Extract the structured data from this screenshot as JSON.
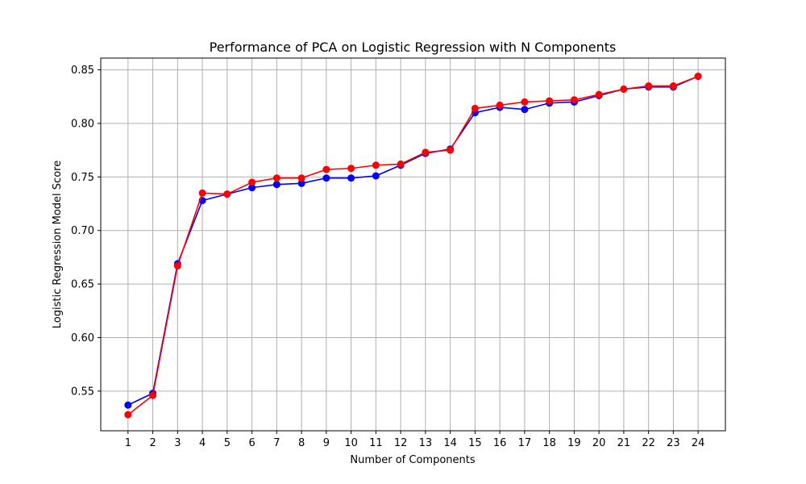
{
  "chart_data": {
    "type": "line",
    "title": "Performance of PCA on Logistic Regression with N Components",
    "xlabel": "Number of Components",
    "ylabel": "Logistic Regression Model Score",
    "x": [
      1,
      2,
      3,
      4,
      5,
      6,
      7,
      8,
      9,
      10,
      11,
      12,
      13,
      14,
      15,
      16,
      17,
      18,
      19,
      20,
      21,
      22,
      23,
      24
    ],
    "x_tick_labels": [
      "1",
      "2",
      "3",
      "4",
      "5",
      "6",
      "7",
      "8",
      "9",
      "10",
      "11",
      "12",
      "13",
      "14",
      "15",
      "16",
      "17",
      "18",
      "19",
      "20",
      "21",
      "22",
      "23",
      "24"
    ],
    "y_tick_values": [
      0.55,
      0.6,
      0.65,
      0.7,
      0.75,
      0.8,
      0.85
    ],
    "y_tick_labels": [
      "0.55",
      "0.60",
      "0.65",
      "0.70",
      "0.75",
      "0.80",
      "0.85"
    ],
    "xlim": [
      -0.1,
      25.1
    ],
    "ylim": [
      0.513,
      0.861
    ],
    "grid": true,
    "series": [
      {
        "color": "#0000ff",
        "marker": "circle",
        "values": [
          0.537,
          0.548,
          0.669,
          0.728,
          0.734,
          0.74,
          0.743,
          0.744,
          0.749,
          0.749,
          0.751,
          0.761,
          0.772,
          0.776,
          0.81,
          0.815,
          0.813,
          0.819,
          0.82,
          0.826,
          0.832,
          0.834,
          0.834,
          0.844
        ]
      },
      {
        "color": "#ff0000",
        "marker": "circle",
        "values": [
          0.528,
          0.546,
          0.667,
          0.735,
          0.734,
          0.745,
          0.749,
          0.749,
          0.757,
          0.758,
          0.761,
          0.762,
          0.773,
          0.775,
          0.814,
          0.817,
          0.82,
          0.821,
          0.822,
          0.827,
          0.832,
          0.835,
          0.835,
          0.844
        ]
      }
    ]
  }
}
